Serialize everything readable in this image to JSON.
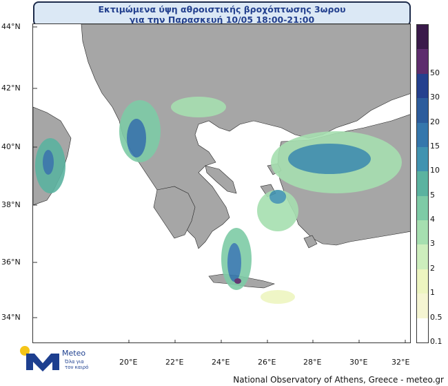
{
  "title": {
    "line1": "Εκτιμώμενα ύψη αθροιστικής βροχόπτωσης 3ωρου",
    "line2": "για την Παρασκευή 10/05 18:00-21:00"
  },
  "latitudes": [
    {
      "label": "44°N",
      "value": 44
    },
    {
      "label": "42°N",
      "value": 42
    },
    {
      "label": "40°N",
      "value": 40
    },
    {
      "label": "38°N",
      "value": 38
    },
    {
      "label": "36°N",
      "value": 36
    },
    {
      "label": "34°N",
      "value": 34
    }
  ],
  "longitudes": [
    {
      "label": "20°E",
      "value": 20
    },
    {
      "label": "22°E",
      "value": 22
    },
    {
      "label": "24°E",
      "value": 24
    },
    {
      "label": "26°E",
      "value": 26
    },
    {
      "label": "28°E",
      "value": 28
    },
    {
      "label": "30°E",
      "value": 30
    },
    {
      "label": "32°E",
      "value": 32
    }
  ],
  "legend": {
    "levels": [
      {
        "label": "0.1",
        "color": "#ffffff"
      },
      {
        "label": "0.5",
        "color": "#f5f5d2"
      },
      {
        "label": "1",
        "color": "#edf5c0"
      },
      {
        "label": "2",
        "color": "#cdeebd"
      },
      {
        "label": "3",
        "color": "#a6dfb0"
      },
      {
        "label": "4",
        "color": "#7ecba6"
      },
      {
        "label": "5",
        "color": "#5bb3a0"
      },
      {
        "label": "10",
        "color": "#4193b0"
      },
      {
        "label": "15",
        "color": "#3577ac"
      },
      {
        "label": "20",
        "color": "#2c5c9c"
      },
      {
        "label": "30",
        "color": "#24408e"
      },
      {
        "label": "50",
        "color": "#5e2d6e"
      },
      {
        "label": "",
        "color": "#3a1a4a"
      }
    ]
  },
  "colors": {
    "land": "#a6a6a6",
    "sea": "#ffffff",
    "border": "#222222"
  },
  "logo": {
    "name": "Meteo",
    "tagline_line1": "Όλα για",
    "tagline_line2": "τον καιρό"
  },
  "footer": "National Observatory of Athens, Greece - meteo.gr"
}
